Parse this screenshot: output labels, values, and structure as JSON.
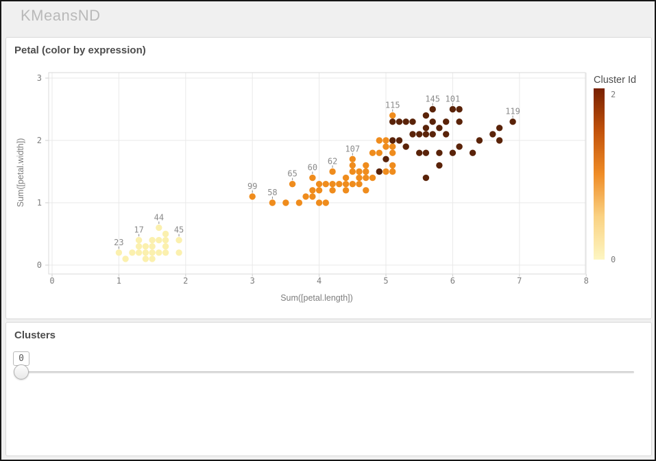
{
  "header": {
    "title": "KMeansND"
  },
  "scatter": {
    "title": "Petal (color by expression)",
    "legend": {
      "title": "Cluster Id",
      "top_label": "2",
      "bottom_label": "0"
    }
  },
  "clusters": {
    "title": "Clusters",
    "value": "0"
  },
  "chart_data": {
    "type": "scatter",
    "title": "Petal (color by expression)",
    "xlabel": "Sum([petal.length])",
    "ylabel": "Sum([petal.width])",
    "xlim": [
      0,
      8
    ],
    "ylim": [
      0,
      3
    ],
    "x_ticks": [
      0,
      1,
      2,
      3,
      4,
      5,
      6,
      7,
      8
    ],
    "y_ticks": [
      0,
      1,
      2,
      3
    ],
    "grid": true,
    "legend": {
      "title": "Cluster Id",
      "min": 0,
      "max": 2,
      "position": "right",
      "style": "gradient"
    },
    "cluster_colors": [
      "#FBF0AE",
      "#EF8C1D",
      "#5A2309"
    ],
    "legend_gradient_top_to_bottom": [
      "#772000",
      "#C2520B",
      "#EF8C26",
      "#FAD283",
      "#FDF6C2"
    ],
    "points_format": [
      "x",
      "y",
      "cluster",
      "label(optional)"
    ],
    "points": [
      [
        1.0,
        0.2,
        0,
        "23"
      ],
      [
        1.1,
        0.1,
        0
      ],
      [
        1.2,
        0.2,
        0
      ],
      [
        1.3,
        0.2,
        0
      ],
      [
        1.3,
        0.3,
        0
      ],
      [
        1.3,
        0.4,
        0,
        "17"
      ],
      [
        1.4,
        0.1,
        0
      ],
      [
        1.4,
        0.2,
        0
      ],
      [
        1.4,
        0.3,
        0
      ],
      [
        1.5,
        0.1,
        0
      ],
      [
        1.5,
        0.2,
        0
      ],
      [
        1.5,
        0.3,
        0
      ],
      [
        1.5,
        0.4,
        0
      ],
      [
        1.6,
        0.2,
        0
      ],
      [
        1.6,
        0.4,
        0
      ],
      [
        1.6,
        0.6,
        0,
        "44"
      ],
      [
        1.7,
        0.2,
        0
      ],
      [
        1.7,
        0.3,
        0
      ],
      [
        1.7,
        0.4,
        0
      ],
      [
        1.7,
        0.5,
        0
      ],
      [
        1.9,
        0.2,
        0
      ],
      [
        1.9,
        0.4,
        0,
        "45"
      ],
      [
        3.0,
        1.1,
        1,
        "99"
      ],
      [
        3.3,
        1.0,
        1,
        "58"
      ],
      [
        3.5,
        1.0,
        1
      ],
      [
        3.6,
        1.3,
        1,
        "65"
      ],
      [
        3.7,
        1.0,
        1
      ],
      [
        3.8,
        1.1,
        1
      ],
      [
        3.9,
        1.1,
        1
      ],
      [
        3.9,
        1.2,
        1
      ],
      [
        3.9,
        1.4,
        1,
        "60"
      ],
      [
        4.0,
        1.0,
        1
      ],
      [
        4.0,
        1.2,
        1
      ],
      [
        4.0,
        1.3,
        1
      ],
      [
        4.1,
        1.0,
        1
      ],
      [
        4.1,
        1.3,
        1
      ],
      [
        4.2,
        1.2,
        1
      ],
      [
        4.2,
        1.3,
        1
      ],
      [
        4.2,
        1.5,
        1,
        "62"
      ],
      [
        4.3,
        1.3,
        1
      ],
      [
        4.4,
        1.2,
        1
      ],
      [
        4.4,
        1.3,
        1
      ],
      [
        4.4,
        1.4,
        1
      ],
      [
        4.5,
        1.3,
        1
      ],
      [
        4.5,
        1.5,
        1
      ],
      [
        4.5,
        1.6,
        1
      ],
      [
        4.5,
        1.7,
        1,
        "107"
      ],
      [
        4.6,
        1.3,
        1
      ],
      [
        4.6,
        1.4,
        1
      ],
      [
        4.6,
        1.5,
        1
      ],
      [
        4.7,
        1.2,
        1
      ],
      [
        4.7,
        1.4,
        1
      ],
      [
        4.7,
        1.5,
        1
      ],
      [
        4.7,
        1.6,
        1
      ],
      [
        4.8,
        1.4,
        1
      ],
      [
        4.8,
        1.8,
        1
      ],
      [
        4.9,
        1.8,
        1
      ],
      [
        4.9,
        2.0,
        1
      ],
      [
        5.0,
        1.5,
        1
      ],
      [
        5.0,
        1.9,
        1
      ],
      [
        5.0,
        2.0,
        1
      ],
      [
        5.1,
        1.5,
        1
      ],
      [
        5.1,
        1.6,
        1
      ],
      [
        5.1,
        1.8,
        1
      ],
      [
        5.1,
        1.9,
        1
      ],
      [
        5.1,
        2.4,
        1,
        "115"
      ],
      [
        4.9,
        1.5,
        2
      ],
      [
        5.0,
        1.7,
        2
      ],
      [
        5.1,
        2.0,
        2
      ],
      [
        5.1,
        2.3,
        2
      ],
      [
        5.2,
        2.0,
        2
      ],
      [
        5.2,
        2.3,
        2
      ],
      [
        5.3,
        1.9,
        2
      ],
      [
        5.3,
        2.3,
        2
      ],
      [
        5.4,
        2.1,
        2
      ],
      [
        5.4,
        2.3,
        2
      ],
      [
        5.5,
        1.8,
        2
      ],
      [
        5.5,
        2.1,
        2
      ],
      [
        5.6,
        1.4,
        2
      ],
      [
        5.6,
        1.8,
        2
      ],
      [
        5.6,
        2.1,
        2
      ],
      [
        5.6,
        2.2,
        2
      ],
      [
        5.6,
        2.4,
        2
      ],
      [
        5.7,
        2.1,
        2
      ],
      [
        5.7,
        2.3,
        2
      ],
      [
        5.7,
        2.5,
        2,
        "145"
      ],
      [
        5.8,
        1.6,
        2
      ],
      [
        5.8,
        1.8,
        2
      ],
      [
        5.8,
        2.2,
        2
      ],
      [
        5.9,
        2.1,
        2
      ],
      [
        5.9,
        2.3,
        2
      ],
      [
        6.0,
        1.8,
        2
      ],
      [
        6.0,
        2.5,
        2,
        "101"
      ],
      [
        6.1,
        1.9,
        2
      ],
      [
        6.1,
        2.3,
        2
      ],
      [
        6.1,
        2.5,
        2
      ],
      [
        6.3,
        1.8,
        2
      ],
      [
        6.4,
        2.0,
        2
      ],
      [
        6.6,
        2.1,
        2
      ],
      [
        6.7,
        2.0,
        2
      ],
      [
        6.7,
        2.2,
        2
      ],
      [
        6.9,
        2.3,
        2,
        "119"
      ]
    ]
  }
}
